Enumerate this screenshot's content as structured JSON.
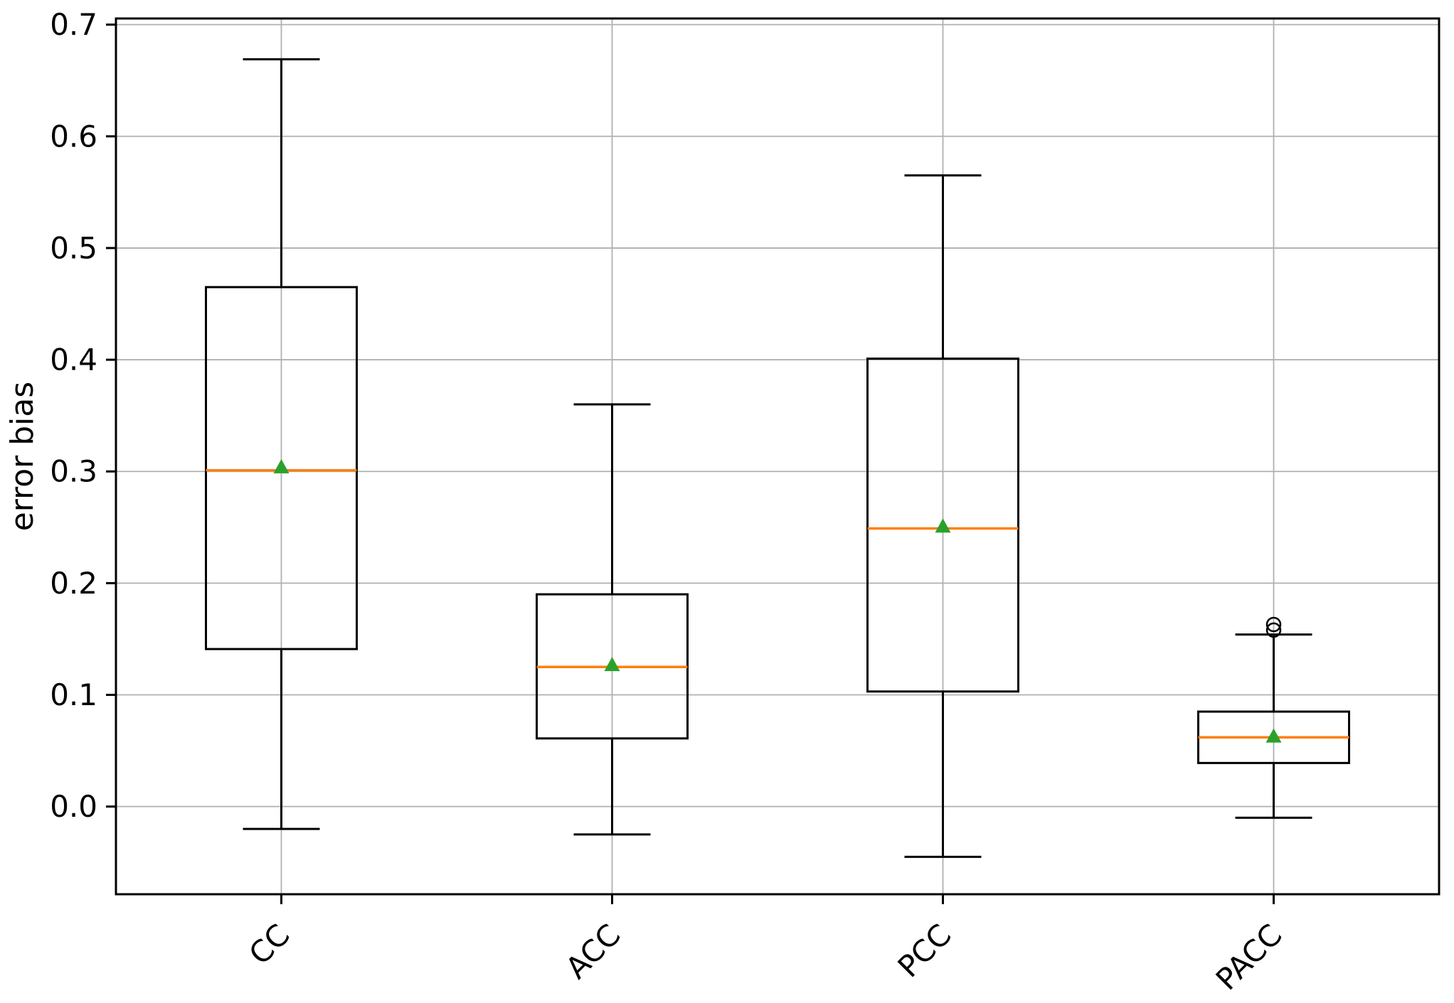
{
  "chart_data": {
    "type": "box",
    "title": "",
    "xlabel": "",
    "ylabel": "error bias",
    "categories": [
      "CC",
      "ACC",
      "PCC",
      "PACC"
    ],
    "series": [
      {
        "name": "CC",
        "whislo": -0.02,
        "q1": 0.141,
        "med": 0.301,
        "mean": 0.304,
        "q3": 0.465,
        "whishi": 0.669,
        "fliers": []
      },
      {
        "name": "ACC",
        "whislo": -0.025,
        "q1": 0.061,
        "med": 0.125,
        "mean": 0.127,
        "q3": 0.19,
        "whishi": 0.36,
        "fliers": []
      },
      {
        "name": "PCC",
        "whislo": -0.045,
        "q1": 0.103,
        "med": 0.249,
        "mean": 0.251,
        "q3": 0.401,
        "whishi": 0.565,
        "fliers": []
      },
      {
        "name": "PACC",
        "whislo": -0.01,
        "q1": 0.039,
        "med": 0.062,
        "mean": 0.063,
        "q3": 0.085,
        "whishi": 0.154,
        "fliers": [
          0.158,
          0.163
        ]
      }
    ],
    "yticks": [
      {
        "value": 0.0,
        "label": "0.0"
      },
      {
        "value": 0.1,
        "label": "0.1"
      },
      {
        "value": 0.2,
        "label": "0.2"
      },
      {
        "value": 0.3,
        "label": "0.3"
      },
      {
        "value": 0.4,
        "label": "0.4"
      },
      {
        "value": 0.5,
        "label": "0.5"
      },
      {
        "value": 0.6,
        "label": "0.6"
      },
      {
        "value": 0.7,
        "label": "0.7"
      },
      {
        "value": 0.7,
        "label": "0.7"
      }
    ],
    "ylim": [
      -0.0785,
      0.7055
    ],
    "grid": true,
    "legend": null,
    "x_label_rotation_deg": 45,
    "mean_marker_shape": "triangle-up",
    "colors": {
      "box": "#000000",
      "whisker": "#000000",
      "median": "#ff7f0e",
      "mean_marker": "#2ca02c",
      "outlier": "#000000",
      "grid": "#b0b0b0",
      "background": "#ffffff"
    }
  }
}
